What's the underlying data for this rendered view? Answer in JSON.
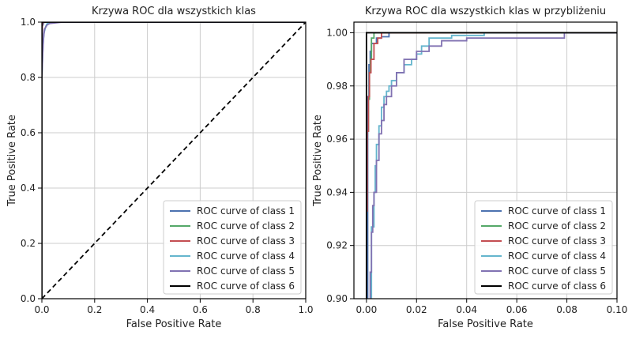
{
  "chart_data": [
    {
      "type": "line",
      "title": "Krzywa ROC dla wszystkich klas",
      "xlabel": "False Positive Rate",
      "ylabel": "True Positive Rate",
      "xlim": [
        0,
        1
      ],
      "ylim": [
        0,
        1
      ],
      "xticks": [
        "0.0",
        "0.2",
        "0.4",
        "0.6",
        "0.8",
        "1.0"
      ],
      "yticks": [
        "0.0",
        "0.2",
        "0.4",
        "0.6",
        "0.8",
        "1.0"
      ],
      "grid": true,
      "legend_position": "lower-right",
      "diagonal": {
        "x": [
          0,
          1
        ],
        "y": [
          0,
          1
        ],
        "color": "#000000",
        "style": "dashed"
      },
      "series": [
        {
          "name": "ROC curve of class 1",
          "color": "#4c72b0",
          "x": [
            0,
            0.002,
            0.004,
            0.006,
            0.009,
            0.02,
            1
          ],
          "y": [
            0.9,
            0.985,
            0.99,
            0.995,
            1.0,
            1.0,
            1.0
          ]
        },
        {
          "name": "ROC curve of class 2",
          "color": "#55a868",
          "x": [
            0,
            0.001,
            0.002,
            0.003,
            1
          ],
          "y": [
            0.96,
            0.985,
            0.998,
            1.0,
            1.0
          ]
        },
        {
          "name": "ROC curve of class 3",
          "color": "#c44e52",
          "x": [
            0,
            0.001,
            0.002,
            0.004,
            0.006,
            1
          ],
          "y": [
            0.93,
            0.975,
            0.995,
            0.998,
            1.0,
            1.0
          ]
        },
        {
          "name": "ROC curve of class 4",
          "color": "#64b5cd",
          "x": [
            0,
            0.004,
            0.008,
            0.015,
            0.02,
            0.05,
            1
          ],
          "y": [
            0.8,
            0.91,
            0.96,
            0.985,
            0.995,
            1.0,
            1.0
          ]
        },
        {
          "name": "ROC curve of class 5",
          "color": "#8172b2",
          "x": [
            0,
            0.003,
            0.006,
            0.01,
            0.02,
            0.03,
            0.08,
            1
          ],
          "y": [
            0.8,
            0.88,
            0.94,
            0.975,
            0.99,
            0.995,
            1.0,
            1.0
          ]
        },
        {
          "name": "ROC curve of class 6",
          "color": "#000000",
          "x": [
            0,
            0,
            1
          ],
          "y": [
            0,
            1.0,
            1.0
          ]
        }
      ]
    },
    {
      "type": "line",
      "title": "Krzywa ROC dla wszystkich klas w przybliżeniu",
      "xlabel": "False Positive Rate",
      "ylabel": "True Positive Rate",
      "xlim": [
        -0.005,
        0.1
      ],
      "ylim": [
        0.9,
        1.004
      ],
      "xticks": [
        "0.00",
        "0.02",
        "0.04",
        "0.06",
        "0.08",
        "0.10"
      ],
      "yticks": [
        "0.90",
        "0.92",
        "0.94",
        "0.96",
        "0.98",
        "1.00"
      ],
      "grid": true,
      "legend_position": "lower-right",
      "series": [
        {
          "name": "ROC curve of class 1",
          "color": "#4c72b0",
          "x": [
            0,
            0.0005,
            0.0005,
            0.001,
            0.001,
            0.0015,
            0.0015,
            0.002,
            0.002,
            0.004,
            0.004,
            0.006,
            0.006,
            0.009,
            0.009,
            0.1
          ],
          "y": [
            0.9,
            0.9,
            0.976,
            0.976,
            0.988,
            0.988,
            0.993,
            0.993,
            0.996,
            0.996,
            0.998,
            0.998,
            0.9985,
            0.9985,
            1.0,
            1.0
          ]
        },
        {
          "name": "ROC curve of class 2",
          "color": "#55a868",
          "x": [
            0,
            0.0008,
            0.0008,
            0.0012,
            0.0012,
            0.0016,
            0.0016,
            0.002,
            0.002,
            0.003,
            0.003,
            0.1
          ],
          "y": [
            0.963,
            0.963,
            0.975,
            0.975,
            0.985,
            0.985,
            0.99,
            0.99,
            0.998,
            0.998,
            1.0,
            1.0
          ]
        },
        {
          "name": "ROC curve of class 3",
          "color": "#c44e52",
          "x": [
            0,
            0.0003,
            0.0003,
            0.0008,
            0.0008,
            0.0012,
            0.0012,
            0.0018,
            0.0018,
            0.003,
            0.003,
            0.0045,
            0.0045,
            0.006,
            0.006,
            0.1
          ],
          "y": [
            0.933,
            0.933,
            0.963,
            0.963,
            0.976,
            0.976,
            0.985,
            0.985,
            0.99,
            0.99,
            0.996,
            0.996,
            0.998,
            0.998,
            1.0,
            1.0
          ]
        },
        {
          "name": "ROC curve of class 4",
          "color": "#64b5cd",
          "x": [
            0.002,
            0.002,
            0.003,
            0.003,
            0.0035,
            0.0035,
            0.004,
            0.004,
            0.005,
            0.005,
            0.006,
            0.006,
            0.007,
            0.007,
            0.008,
            0.008,
            0.009,
            0.009,
            0.01,
            0.01,
            0.012,
            0.012,
            0.015,
            0.015,
            0.018,
            0.018,
            0.02,
            0.02,
            0.022,
            0.022,
            0.025,
            0.025,
            0.034,
            0.034,
            0.047,
            0.047,
            0.1
          ],
          "y": [
            0.9,
            0.927,
            0.927,
            0.94,
            0.94,
            0.95,
            0.95,
            0.958,
            0.958,
            0.965,
            0.965,
            0.972,
            0.972,
            0.976,
            0.976,
            0.978,
            0.978,
            0.98,
            0.98,
            0.982,
            0.982,
            0.985,
            0.985,
            0.988,
            0.988,
            0.99,
            0.99,
            0.992,
            0.992,
            0.995,
            0.995,
            0.998,
            0.998,
            0.999,
            0.999,
            1.0,
            1.0
          ]
        },
        {
          "name": "ROC curve of class 5",
          "color": "#8172b2",
          "x": [
            0.0015,
            0.0015,
            0.002,
            0.002,
            0.0025,
            0.0025,
            0.003,
            0.003,
            0.004,
            0.004,
            0.005,
            0.005,
            0.006,
            0.006,
            0.007,
            0.007,
            0.008,
            0.008,
            0.01,
            0.01,
            0.012,
            0.012,
            0.015,
            0.015,
            0.02,
            0.02,
            0.025,
            0.025,
            0.03,
            0.03,
            0.04,
            0.04,
            0.079,
            0.079,
            0.1
          ],
          "y": [
            0.9,
            0.91,
            0.91,
            0.925,
            0.925,
            0.935,
            0.935,
            0.94,
            0.94,
            0.952,
            0.952,
            0.962,
            0.962,
            0.967,
            0.967,
            0.973,
            0.973,
            0.976,
            0.976,
            0.98,
            0.98,
            0.985,
            0.985,
            0.99,
            0.99,
            0.993,
            0.993,
            0.995,
            0.995,
            0.997,
            0.997,
            0.998,
            0.998,
            1.0,
            1.0
          ]
        },
        {
          "name": "ROC curve of class 6",
          "color": "#000000",
          "x": [
            0,
            0,
            0.1
          ],
          "y": [
            0.9,
            1.0,
            1.0
          ]
        }
      ]
    }
  ]
}
